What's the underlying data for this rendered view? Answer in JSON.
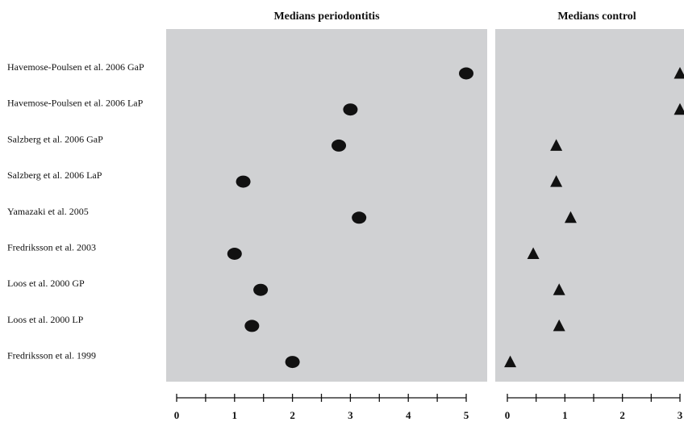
{
  "chart_data": [
    {
      "type": "scatter",
      "title": "Medians periodontitis",
      "marker": "circle",
      "xlim": [
        0,
        5
      ],
      "tick_labels": [
        "0",
        "1",
        "2",
        "3",
        "4",
        "5"
      ],
      "categories": [
        "Havemose-Poulsen et al. 2006 GaP",
        "Havemose-Poulsen et al. 2006 LaP",
        "Salzberg et al. 2006 GaP",
        "Salzberg et al. 2006 LaP",
        "Yamazaki et al. 2005",
        "Fredriksson et al. 2003",
        "Loos et al. 2000 GP",
        "Loos et al. 2000 LP",
        "Fredriksson et al. 1999"
      ],
      "values": [
        5.0,
        3.0,
        2.8,
        1.15,
        3.15,
        1.0,
        1.45,
        1.3,
        2.0
      ],
      "grid": false,
      "legend": "none"
    },
    {
      "type": "scatter",
      "title": "Medians control",
      "marker": "triangle",
      "xlim": [
        0,
        3
      ],
      "tick_labels": [
        "0",
        "1",
        "2",
        "3"
      ],
      "categories": [
        "Havemose-Poulsen et al. 2006 GaP",
        "Havemose-Poulsen et al. 2006 LaP",
        "Salzberg et al. 2006 GaP",
        "Salzberg et al. 2006 LaP",
        "Yamazaki et al. 2005",
        "Fredriksson et al. 2003",
        "Loos et al. 2000 GP",
        "Loos et al. 2000 LP",
        "Fredriksson et al. 1999"
      ],
      "values": [
        3.0,
        3.0,
        0.85,
        0.85,
        1.1,
        0.45,
        0.9,
        0.9,
        0.05
      ],
      "grid": false,
      "legend": "none"
    }
  ]
}
